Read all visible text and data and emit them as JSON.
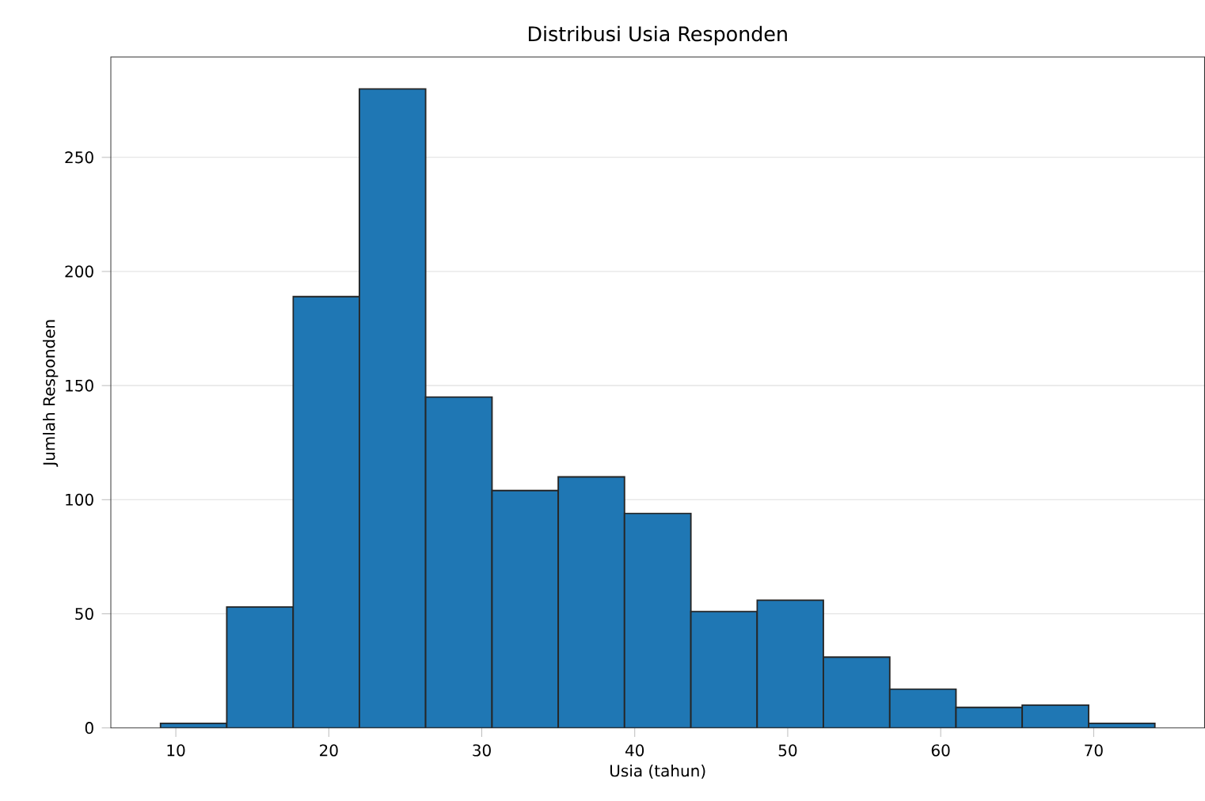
{
  "chart_data": {
    "type": "histogram",
    "title": "Distribusi Usia Responden",
    "xlabel": "Usia (tahun)",
    "ylabel": "Jumlah Responden",
    "bins": [
      9,
      13.33,
      17.67,
      22,
      26.33,
      30.67,
      35,
      39.33,
      43.67,
      48,
      52.33,
      56.67,
      61,
      65.33,
      69.67,
      74
    ],
    "values": [
      2,
      53,
      189,
      280,
      145,
      104,
      110,
      94,
      51,
      56,
      31,
      17,
      9,
      10,
      2
    ],
    "color": "#1f77b4",
    "xlim": [
      5.75,
      77.25
    ],
    "xticks": [
      10,
      20,
      30,
      40,
      50,
      60,
      70
    ],
    "ylim": [
      0,
      294
    ],
    "yticks": [
      0,
      50,
      100,
      150,
      200,
      250
    ],
    "grid": "y"
  }
}
